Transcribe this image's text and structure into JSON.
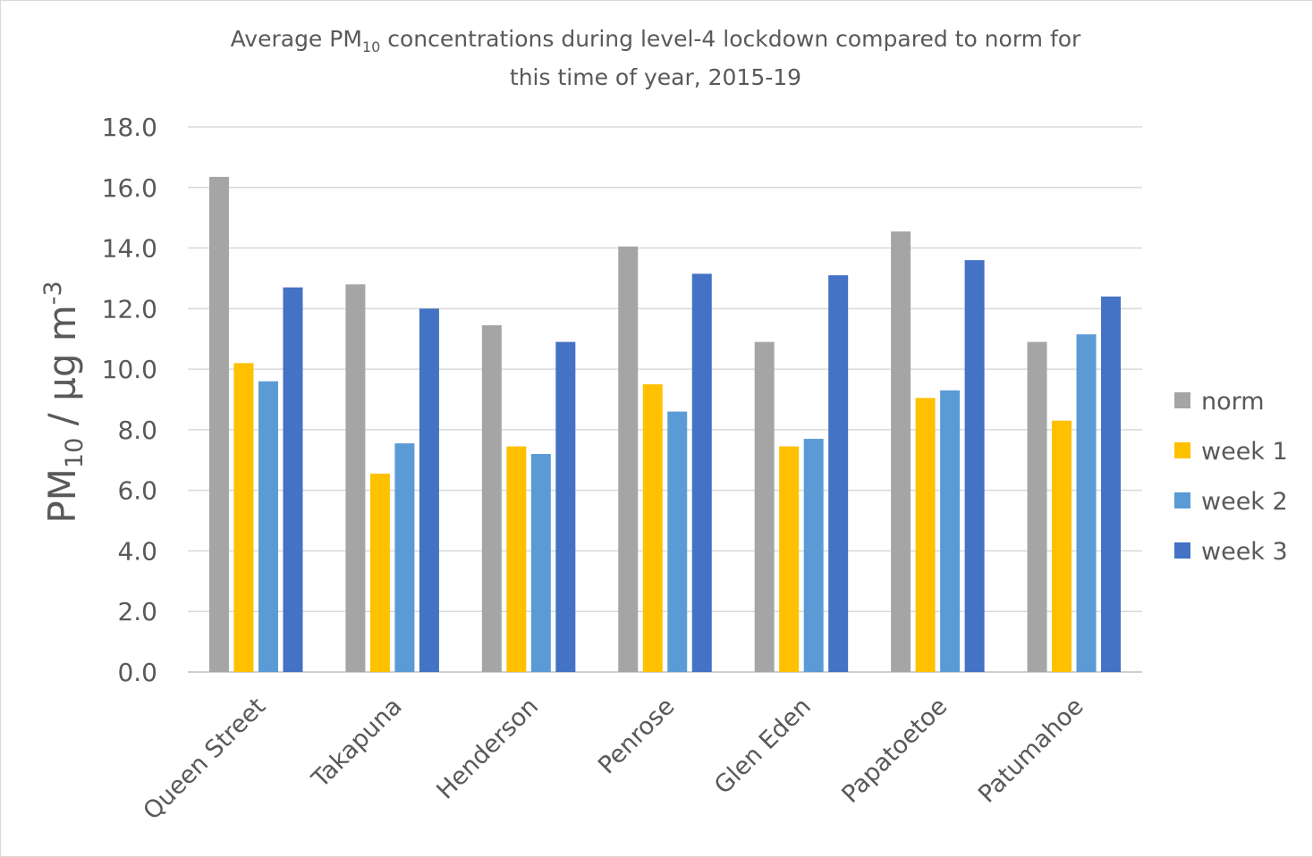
{
  "chart_data": {
    "type": "bar",
    "title": [
      "Average PM",
      "10",
      " concentrations during level-4 lockdown compared to norm for",
      "this time of year, 2015-19"
    ],
    "y_label": [
      "PM",
      "10",
      " / µg m",
      "-3"
    ],
    "categories": [
      "Queen Street",
      "Takapuna",
      "Henderson",
      "Penrose",
      "Glen Eden",
      "Papatoetoe",
      "Patumahoe"
    ],
    "series": [
      {
        "name": "norm",
        "color": "#a5a5a5",
        "values": [
          16.35,
          12.8,
          11.45,
          14.05,
          10.9,
          14.55,
          10.9
        ]
      },
      {
        "name": "week 1",
        "color": "#ffc000",
        "values": [
          10.2,
          6.55,
          7.45,
          9.5,
          7.45,
          9.05,
          8.3
        ]
      },
      {
        "name": "week 2",
        "color": "#5b9bd5",
        "values": [
          9.6,
          7.55,
          7.2,
          8.6,
          7.7,
          9.3,
          11.15
        ]
      },
      {
        "name": "week 3",
        "color": "#4472c4",
        "values": [
          12.7,
          12.0,
          10.9,
          13.15,
          13.1,
          13.6,
          12.4
        ]
      }
    ],
    "ylim": [
      0,
      18
    ],
    "yticks": [
      {
        "value": 0,
        "label": "0.0"
      },
      {
        "value": 2,
        "label": "2.0"
      },
      {
        "value": 4,
        "label": "4.0"
      },
      {
        "value": 6,
        "label": "6.0"
      },
      {
        "value": 8,
        "label": "8.0"
      },
      {
        "value": 10,
        "label": "10.0"
      },
      {
        "value": 12,
        "label": "12.0"
      },
      {
        "value": 14,
        "label": "14.0"
      },
      {
        "value": 16,
        "label": "16.0"
      },
      {
        "value": 18,
        "label": "18.0"
      }
    ],
    "grid": true,
    "legend": "right"
  }
}
